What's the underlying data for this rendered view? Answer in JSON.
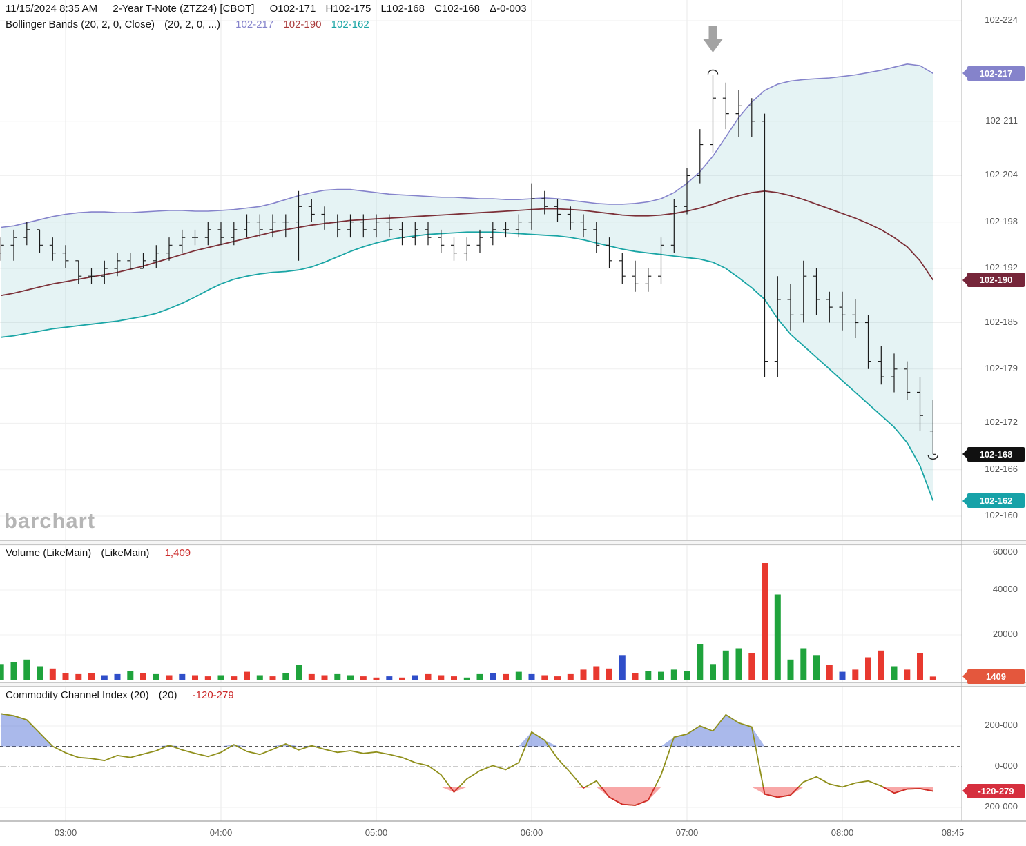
{
  "header": {
    "datetime": "11/15/2024 8:35 AM",
    "instrument": "2-Year T-Note (ZTZ24) [CBOT]",
    "open": "O102-171",
    "high": "H102-175",
    "low": "L102-168",
    "close": "C102-168",
    "change": "Δ-0-003",
    "indicator_name": "Bollinger Bands (20, 2, 0, Close)",
    "indicator_params": "(20, 2, 0, ...)",
    "bb_upper": "102-217",
    "bb_middle": "102-190",
    "bb_lower": "102-162"
  },
  "panels": {
    "volume": {
      "name": "Volume (LikeMain)",
      "params": "(LikeMain)",
      "value": "1,409"
    },
    "cci": {
      "name": "Commodity Channel Index (20)",
      "params": "(20)",
      "value": "-120-279"
    }
  },
  "watermark": "barchart",
  "colors": {
    "bb_upper": "#8583cb",
    "bb_middle": "#7c3038",
    "bb_middle_text": "#a93a3a",
    "bb_lower": "#1aa5a5",
    "band_fill": "rgba(70,170,175,0.14)",
    "ohlc_bar": "#1a1a1a",
    "vol_up": "#1fa33c",
    "vol_down": "#e8392f",
    "vol_neutral": "#2f4ec9",
    "cci_line": "#8f8f1b",
    "cci_above_fill": "rgba(85,115,215,0.5)",
    "cci_below_fill": "rgba(242,95,95,0.55)",
    "cci_below_line": "#d42a2a",
    "value_red": "#cc2a2a",
    "arrow": "#a3a3a3",
    "axis_text": "#575757"
  },
  "axis_badges": [
    {
      "label": "102-217",
      "v": 217.2,
      "color": "#8583cb",
      "panel": "price"
    },
    {
      "label": "102-190",
      "v": 190.5,
      "color": "#76263a",
      "panel": "price"
    },
    {
      "label": "102-168",
      "v": 168,
      "color": "#111111",
      "panel": "price"
    },
    {
      "label": "102-162",
      "v": 162,
      "color": "#17a2a8",
      "panel": "price"
    },
    {
      "label": "1409",
      "v": 1409,
      "color": "#e4573d",
      "panel": "volume"
    },
    {
      "label": "-120-279",
      "v": -120.3,
      "color": "#d62f3e",
      "panel": "cci"
    }
  ],
  "chart_data": [
    {
      "type": "ohlc",
      "title": "2-Year T-Note (ZTZ24) [CBOT] 5-minute bars with Bollinger Bands (20,2,0,Close)",
      "units_note": "prices encoded as tenths of 32nds above 102: 168 = 102-168",
      "x_start_min": 155,
      "x_step_min": 5,
      "x_ticks": [
        {
          "label": "03:00",
          "min": 180
        },
        {
          "label": "04:00",
          "min": 240
        },
        {
          "label": "05:00",
          "min": 300
        },
        {
          "label": "06:00",
          "min": 360
        },
        {
          "label": "07:00",
          "min": 420
        },
        {
          "label": "08:00",
          "min": 480
        },
        {
          "label": "08:45",
          "min": 525
        }
      ],
      "y_ticks": [
        {
          "label": "102-224",
          "v": 224
        },
        {
          "label": "102-217",
          "v": 217
        },
        {
          "label": "102-211",
          "v": 211
        },
        {
          "label": "102-204",
          "v": 204
        },
        {
          "label": "102-198",
          "v": 198
        },
        {
          "label": "102-192",
          "v": 192
        },
        {
          "label": "102-185",
          "v": 185
        },
        {
          "label": "102-179",
          "v": 179
        },
        {
          "label": "102-172",
          "v": 172
        },
        {
          "label": "102-166",
          "v": 166
        },
        {
          "label": "102-160",
          "v": 160
        }
      ],
      "ohlc": [
        [
          194,
          196,
          193,
          195
        ],
        [
          195,
          197,
          193,
          196
        ],
        [
          196,
          198,
          195,
          197
        ],
        [
          197,
          197,
          194,
          195
        ],
        [
          195,
          196,
          193,
          194
        ],
        [
          194,
          195,
          192,
          193
        ],
        [
          193,
          193,
          190,
          191
        ],
        [
          191,
          192,
          190,
          191
        ],
        [
          191,
          193,
          190,
          192
        ],
        [
          192,
          194,
          191,
          193
        ],
        [
          193,
          194,
          192,
          192
        ],
        [
          192,
          194,
          192,
          193
        ],
        [
          193,
          195,
          192,
          194
        ],
        [
          194,
          196,
          193,
          195
        ],
        [
          195,
          197,
          194,
          196
        ],
        [
          196,
          197,
          195,
          196
        ],
        [
          196,
          198,
          195,
          197
        ],
        [
          197,
          198,
          195,
          196
        ],
        [
          196,
          198,
          195,
          197
        ],
        [
          197,
          199,
          196,
          198
        ],
        [
          198,
          199,
          196,
          197
        ],
        [
          197,
          199,
          196,
          198
        ],
        [
          198,
          199,
          196,
          198
        ],
        [
          198,
          202,
          193,
          200
        ],
        [
          200,
          201,
          198,
          199
        ],
        [
          199,
          200,
          197,
          198
        ],
        [
          198,
          199,
          196,
          197
        ],
        [
          197,
          199,
          196,
          198
        ],
        [
          198,
          199,
          196,
          197
        ],
        [
          197,
          199,
          196,
          198
        ],
        [
          198,
          199,
          196,
          197
        ],
        [
          197,
          198,
          195,
          196
        ],
        [
          196,
          198,
          195,
          197
        ],
        [
          197,
          198,
          195,
          196
        ],
        [
          196,
          197,
          194,
          195
        ],
        [
          195,
          196,
          193,
          194
        ],
        [
          194,
          196,
          193,
          195
        ],
        [
          195,
          197,
          194,
          196
        ],
        [
          196,
          198,
          195,
          197
        ],
        [
          197,
          198,
          196,
          197
        ],
        [
          197,
          199,
          196,
          198
        ],
        [
          198,
          203,
          197,
          201
        ],
        [
          201,
          202,
          199,
          200
        ],
        [
          200,
          201,
          198,
          199
        ],
        [
          199,
          200,
          197,
          198
        ],
        [
          198,
          199,
          196,
          197
        ],
        [
          197,
          198,
          194,
          195
        ],
        [
          195,
          196,
          192,
          193
        ],
        [
          193,
          194,
          190,
          191
        ],
        [
          191,
          193,
          189,
          190
        ],
        [
          190,
          192,
          189,
          191
        ],
        [
          191,
          196,
          190,
          195
        ],
        [
          195,
          201,
          194,
          200
        ],
        [
          200,
          205,
          199,
          204
        ],
        [
          204,
          210,
          203,
          208
        ],
        [
          208,
          217,
          207,
          214
        ],
        [
          214,
          216,
          210,
          212
        ],
        [
          212,
          215,
          209,
          213
        ],
        [
          213,
          214,
          209,
          211
        ],
        [
          211,
          212,
          178,
          180
        ],
        [
          180,
          191,
          178,
          188
        ],
        [
          188,
          190,
          184,
          186
        ],
        [
          186,
          193,
          185,
          191
        ],
        [
          191,
          192,
          186,
          188
        ],
        [
          188,
          189,
          185,
          187
        ],
        [
          187,
          189,
          184,
          186
        ],
        [
          186,
          188,
          183,
          185
        ],
        [
          185,
          186,
          179,
          180
        ],
        [
          180,
          182,
          177,
          178
        ],
        [
          178,
          181,
          176,
          179
        ],
        [
          179,
          180,
          175,
          176
        ],
        [
          176,
          178,
          171,
          173
        ],
        [
          171,
          175,
          168,
          168
        ]
      ],
      "bollinger_upper": [
        197.3,
        197.5,
        197.9,
        198.3,
        198.7,
        199.0,
        199.2,
        199.3,
        199.3,
        199.2,
        199.2,
        199.3,
        199.4,
        199.5,
        199.5,
        199.4,
        199.4,
        199.5,
        199.6,
        199.8,
        200.0,
        200.4,
        200.9,
        201.4,
        201.8,
        202.1,
        202.2,
        202.2,
        202.0,
        201.8,
        201.6,
        201.5,
        201.4,
        201.3,
        201.2,
        201.2,
        201.1,
        201.0,
        201.0,
        200.9,
        200.9,
        201.0,
        201.1,
        201.0,
        200.8,
        200.6,
        200.4,
        200.3,
        200.3,
        200.4,
        200.6,
        201.0,
        201.8,
        203.0,
        204.5,
        206.5,
        209.0,
        211.5,
        213.5,
        215.0,
        215.8,
        216.2,
        216.4,
        216.5,
        216.6,
        216.8,
        217.0,
        217.3,
        217.6,
        218.0,
        218.4,
        218.2,
        217.2
      ],
      "bollinger_middle": [
        188.5,
        188.8,
        189.2,
        189.6,
        190.0,
        190.3,
        190.6,
        190.9,
        191.2,
        191.5,
        191.9,
        192.3,
        192.8,
        193.3,
        193.8,
        194.3,
        194.7,
        195.1,
        195.5,
        195.9,
        196.3,
        196.7,
        197.0,
        197.3,
        197.6,
        197.8,
        198.0,
        198.2,
        198.3,
        198.4,
        198.5,
        198.6,
        198.7,
        198.8,
        198.9,
        199.0,
        199.1,
        199.2,
        199.3,
        199.4,
        199.5,
        199.6,
        199.7,
        199.7,
        199.6,
        199.5,
        199.3,
        199.1,
        198.9,
        198.8,
        198.8,
        198.9,
        199.1,
        199.4,
        199.8,
        200.3,
        200.9,
        201.4,
        201.8,
        202.0,
        201.8,
        201.4,
        200.9,
        200.3,
        199.7,
        199.1,
        198.5,
        197.8,
        197.0,
        196.0,
        194.8,
        193.0,
        190.5
      ],
      "bollinger_lower": [
        183.1,
        183.3,
        183.6,
        183.9,
        184.2,
        184.4,
        184.6,
        184.8,
        185.0,
        185.2,
        185.5,
        185.8,
        186.2,
        186.8,
        187.5,
        188.3,
        189.2,
        190.0,
        190.6,
        191.0,
        191.3,
        191.5,
        191.6,
        191.8,
        192.2,
        192.8,
        193.5,
        194.2,
        194.8,
        195.3,
        195.7,
        196.0,
        196.2,
        196.4,
        196.5,
        196.6,
        196.7,
        196.7,
        196.7,
        196.6,
        196.5,
        196.4,
        196.3,
        196.2,
        196.0,
        195.7,
        195.3,
        194.9,
        194.5,
        194.2,
        194.0,
        193.8,
        193.6,
        193.4,
        193.2,
        192.8,
        192.0,
        190.8,
        189.5,
        188.0,
        185.5,
        183.5,
        182.0,
        180.5,
        179.0,
        177.5,
        176.0,
        174.5,
        173.0,
        171.5,
        169.5,
        166.5,
        162.0
      ],
      "annotations": {
        "arrow_down_min": 430,
        "high_mark_min": 430,
        "high_mark_v": 217,
        "low_mark_min": 515,
        "low_mark_v": 168
      }
    },
    {
      "type": "bar",
      "name": "Volume (LikeMain)",
      "y_ticks": [
        {
          "label": "60000",
          "v": 60000
        },
        {
          "label": "40000",
          "v": 40000
        },
        {
          "label": "20000",
          "v": 20000
        }
      ],
      "values": [
        7000,
        8000,
        9000,
        6000,
        5000,
        3000,
        2500,
        3000,
        2000,
        2500,
        4000,
        3000,
        2500,
        2000,
        2500,
        2000,
        1500,
        2000,
        1500,
        3500,
        2000,
        1500,
        3000,
        6500,
        2500,
        2000,
        2500,
        2000,
        1500,
        1000,
        1500,
        1000,
        2000,
        2500,
        2000,
        1500,
        1000,
        2500,
        3000,
        2500,
        3500,
        2500,
        2000,
        1500,
        2500,
        4500,
        6000,
        5000,
        11000,
        3000,
        4000,
        3500,
        4500,
        4000,
        16000,
        7000,
        13000,
        14000,
        12000,
        52000,
        38000,
        9000,
        14000,
        11000,
        6500,
        3500,
        4500,
        10000,
        13000,
        6000,
        4500,
        12000,
        1409
      ],
      "colors": [
        "g",
        "g",
        "g",
        "g",
        "r",
        "r",
        "r",
        "r",
        "b",
        "b",
        "g",
        "r",
        "g",
        "r",
        "b",
        "r",
        "r",
        "g",
        "r",
        "r",
        "g",
        "r",
        "g",
        "g",
        "r",
        "r",
        "g",
        "g",
        "r",
        "r",
        "b",
        "r",
        "b",
        "r",
        "r",
        "r",
        "g",
        "g",
        "b",
        "r",
        "g",
        "b",
        "r",
        "r",
        "r",
        "r",
        "r",
        "r",
        "b",
        "r",
        "g",
        "g",
        "g",
        "g",
        "g",
        "g",
        "g",
        "g",
        "r",
        "r",
        "g",
        "g",
        "g",
        "g",
        "r",
        "b",
        "r",
        "r",
        "r",
        "g",
        "r",
        "r",
        "r"
      ],
      "last_value": 1409
    },
    {
      "type": "line",
      "name": "Commodity Channel Index (20)",
      "y_ticks": [
        {
          "label": "200-000",
          "v": 200
        },
        {
          "label": "0-000",
          "v": 0
        },
        {
          "label": "-200-000",
          "v": -200
        }
      ],
      "thresholds": {
        "upper": 100,
        "lower": -100
      },
      "values": [
        260,
        250,
        230,
        165,
        100,
        68,
        45,
        40,
        30,
        55,
        45,
        62,
        78,
        105,
        82,
        65,
        50,
        70,
        108,
        75,
        60,
        85,
        112,
        82,
        103,
        85,
        70,
        78,
        65,
        72,
        60,
        45,
        20,
        5,
        -40,
        -125,
        -60,
        -20,
        5,
        -15,
        20,
        170,
        130,
        40,
        -30,
        -105,
        -70,
        -150,
        -185,
        -190,
        -165,
        -40,
        145,
        160,
        200,
        175,
        255,
        215,
        195,
        -135,
        -150,
        -140,
        -75,
        -50,
        -85,
        -100,
        -80,
        -70,
        -95,
        -130,
        -110,
        -108,
        -120.3
      ],
      "last_value": -120.279
    }
  ]
}
